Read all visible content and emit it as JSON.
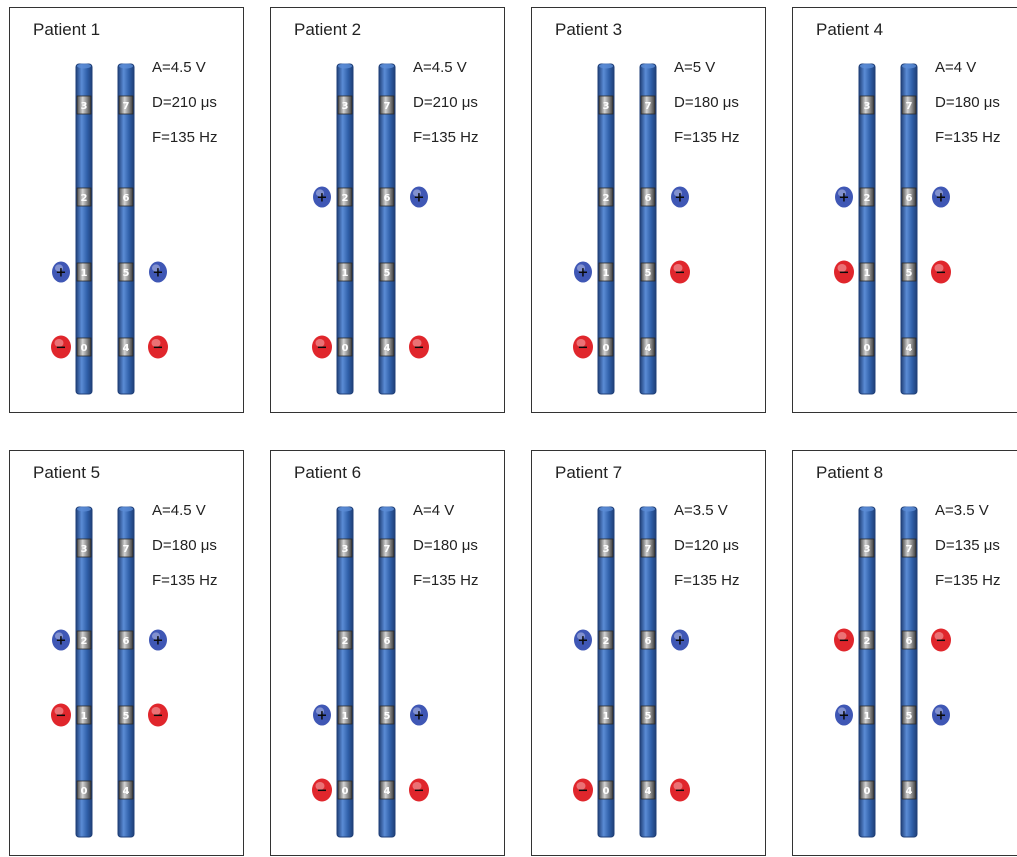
{
  "colors": {
    "lead_body": "#2f5fa8",
    "lead_highlight": "#5b8cd6",
    "lead_shadow": "#1f3f78",
    "contact": "#7f7f7f",
    "contact_highlight": "#d6d6d6",
    "anode": "#3f57b5",
    "cathode": "#e0262c",
    "frame": "#333333"
  },
  "patients": [
    {
      "label": "Patient 1",
      "amplitude": "A=4.5 V",
      "pulse_width": "D=210 μs",
      "frequency": "F=135 Hz",
      "left_lead": {
        "contacts": [
          "3",
          "2",
          "1",
          "0"
        ],
        "polarity": [
          "",
          "",
          "+",
          "−"
        ]
      },
      "right_lead": {
        "contacts": [
          "7",
          "6",
          "5",
          "4"
        ],
        "polarity": [
          "",
          "",
          "+",
          "−"
        ]
      }
    },
    {
      "label": "Patient 2",
      "amplitude": "A=4.5 V",
      "pulse_width": "D=210 μs",
      "frequency": "F=135 Hz",
      "left_lead": {
        "contacts": [
          "3",
          "2",
          "1",
          "0"
        ],
        "polarity": [
          "",
          "+",
          "",
          "−"
        ]
      },
      "right_lead": {
        "contacts": [
          "7",
          "6",
          "5",
          "4"
        ],
        "polarity": [
          "",
          "+",
          "",
          "−"
        ]
      }
    },
    {
      "label": "Patient 3",
      "amplitude": "A=5 V",
      "pulse_width": "D=180 μs",
      "frequency": "F=135 Hz",
      "left_lead": {
        "contacts": [
          "3",
          "2",
          "1",
          "0"
        ],
        "polarity": [
          "",
          "",
          "+",
          "−"
        ]
      },
      "right_lead": {
        "contacts": [
          "7",
          "6",
          "5",
          "4"
        ],
        "polarity": [
          "",
          "+",
          "−",
          ""
        ]
      }
    },
    {
      "label": "Patient 4",
      "amplitude": "A=4 V",
      "pulse_width": "D=180 μs",
      "frequency": "F=135 Hz",
      "left_lead": {
        "contacts": [
          "3",
          "2",
          "1",
          "0"
        ],
        "polarity": [
          "",
          "+",
          "−",
          ""
        ]
      },
      "right_lead": {
        "contacts": [
          "7",
          "6",
          "5",
          "4"
        ],
        "polarity": [
          "",
          "+",
          "−",
          ""
        ]
      }
    },
    {
      "label": "Patient 5",
      "amplitude": "A=4.5 V",
      "pulse_width": "D=180 μs",
      "frequency": "F=135 Hz",
      "left_lead": {
        "contacts": [
          "3",
          "2",
          "1",
          "0"
        ],
        "polarity": [
          "",
          "+",
          "−",
          ""
        ]
      },
      "right_lead": {
        "contacts": [
          "7",
          "6",
          "5",
          "4"
        ],
        "polarity": [
          "",
          "+",
          "−",
          ""
        ]
      }
    },
    {
      "label": "Patient 6",
      "amplitude": "A=4 V",
      "pulse_width": "D=180 μs",
      "frequency": "F=135 Hz",
      "left_lead": {
        "contacts": [
          "3",
          "2",
          "1",
          "0"
        ],
        "polarity": [
          "",
          "",
          "+",
          "−"
        ]
      },
      "right_lead": {
        "contacts": [
          "7",
          "6",
          "5",
          "4"
        ],
        "polarity": [
          "",
          "",
          "+",
          "−"
        ]
      }
    },
    {
      "label": "Patient 7",
      "amplitude": "A=3.5 V",
      "pulse_width": "D=120 μs",
      "frequency": "F=135 Hz",
      "left_lead": {
        "contacts": [
          "3",
          "2",
          "1",
          "0"
        ],
        "polarity": [
          "",
          "+",
          "",
          "−"
        ]
      },
      "right_lead": {
        "contacts": [
          "7",
          "6",
          "5",
          "4"
        ],
        "polarity": [
          "",
          "+",
          "",
          "−"
        ]
      }
    },
    {
      "label": "Patient 8",
      "amplitude": "A=3.5 V",
      "pulse_width": "D=135 μs",
      "frequency": "F=135 Hz",
      "left_lead": {
        "contacts": [
          "3",
          "2",
          "1",
          "0"
        ],
        "polarity": [
          "",
          "−",
          "+",
          ""
        ]
      },
      "right_lead": {
        "contacts": [
          "7",
          "6",
          "5",
          "4"
        ],
        "polarity": [
          "",
          "−",
          "+",
          ""
        ]
      }
    }
  ]
}
